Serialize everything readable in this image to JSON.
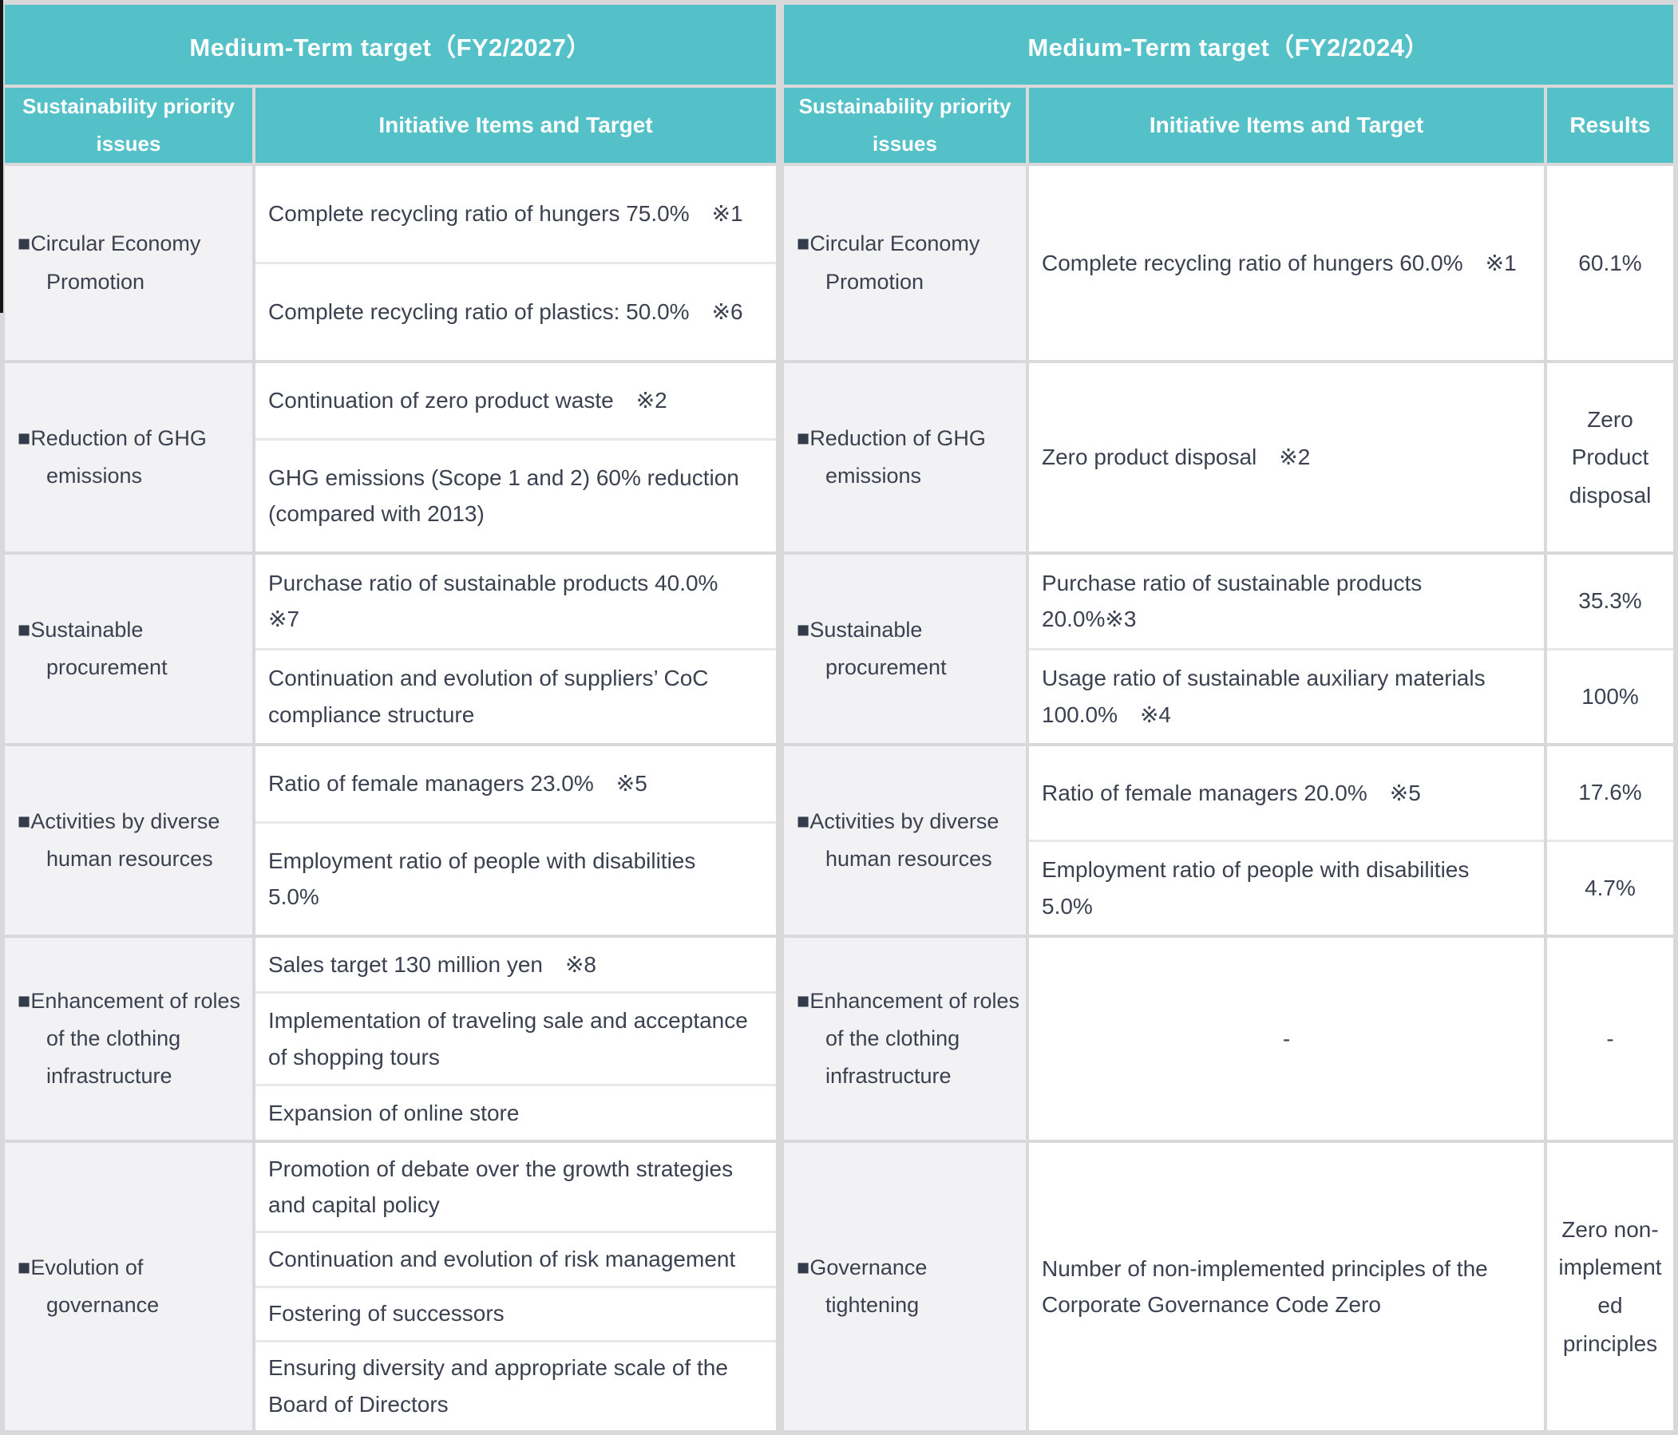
{
  "chars": {
    "bullet": "■"
  },
  "tables": [
    {
      "title": "Medium-Term target（FY2/2027）",
      "columns": {
        "issues": "Sustainability priority issues",
        "initiative": "Initiative Items and Target"
      },
      "rows": [
        {
          "issue": "Circular Economy Promotion",
          "items": [
            "Complete recycling ratio of hungers 75.0%　※1",
            "Complete recycling ratio of plastics: 50.0%　※6"
          ]
        },
        {
          "issue": "Reduction of GHG emissions",
          "items": [
            "Continuation of zero product waste　※2",
            "GHG emissions (Scope 1 and 2) 60% reduction (compared with 2013)"
          ]
        },
        {
          "issue": "Sustainable procurement",
          "items": [
            "Purchase ratio of sustainable products 40.0%　※7",
            "Continuation and evolution of suppliers’ CoC compliance structure"
          ]
        },
        {
          "issue": "Activities by diverse human resources",
          "items": [
            "Ratio of female managers 23.0%　※5",
            "Employment ratio of people with disabilities 5.0%"
          ]
        },
        {
          "issue": "Enhancement of roles of the clothing infrastructure",
          "items": [
            "Sales target 130 million yen　※8",
            "Implementation of traveling sale and acceptance of shopping tours",
            "Expansion of online store"
          ]
        },
        {
          "issue": "Evolution of governance",
          "items": [
            "Promotion of debate over the growth strategies and capital policy",
            "Continuation and evolution of risk management",
            "Fostering of successors",
            "Ensuring diversity and appropriate scale of the Board of Directors"
          ]
        }
      ]
    },
    {
      "title": "Medium-Term target（FY2/2024）",
      "columns": {
        "issues": "Sustainability priority issues",
        "initiative": "Initiative Items and Target",
        "results": "Results"
      },
      "rows": [
        {
          "issue": "Circular Economy Promotion",
          "entries": [
            {
              "item": "Complete recycling ratio of hungers 60.0%　※1",
              "result": "60.1%"
            }
          ]
        },
        {
          "issue": "Reduction of GHG emissions",
          "entries": [
            {
              "item": "Zero product disposal　※2",
              "result": "Zero Product disposal"
            }
          ]
        },
        {
          "issue": "Sustainable procurement",
          "entries": [
            {
              "item": "Purchase ratio of sustainable products 20.0%※3",
              "result": "35.3%"
            },
            {
              "item": "Usage ratio of sustainable auxiliary materials 100.0%　※4",
              "result": "100%"
            }
          ]
        },
        {
          "issue": "Activities by diverse human resources",
          "entries": [
            {
              "item": "Ratio of female managers 20.0%　※5",
              "result": "17.6%"
            },
            {
              "item": "Employment ratio of people with disabilities 5.0%",
              "result": "4.7%"
            }
          ]
        },
        {
          "issue": "Enhancement of roles of the clothing infrastructure",
          "entries": [
            {
              "item": "-",
              "result": "-"
            }
          ]
        },
        {
          "issue": "Governance tightening",
          "entries": [
            {
              "item": "Number of non-implemented principles of the Corporate Governance Code Zero",
              "result": "Zero non-implemented principles"
            }
          ]
        }
      ]
    }
  ]
}
